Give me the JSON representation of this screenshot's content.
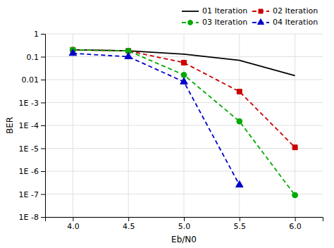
{
  "chart_data": {
    "type": "line",
    "xlabel": "Eb/N0",
    "ylabel": "BER",
    "log": "y",
    "grid": true,
    "legend": "upper right",
    "xlim": [
      3.75,
      6.25
    ],
    "ylim": [
      1e-08,
      1
    ],
    "xticks": [
      {
        "value": 4.0,
        "label": "4.0"
      },
      4.5,
      {
        "value": 5.0,
        "label": "5.0"
      },
      5.5,
      {
        "value": 6.0,
        "label": "6.0"
      }
    ],
    "yticks": [
      {
        "value": 1e-08,
        "label": "1E -8"
      },
      {
        "value": 1e-07,
        "label": "1E -7"
      },
      {
        "value": 1e-06,
        "label": "1E -6"
      },
      {
        "value": 1e-05,
        "label": "1E -5"
      },
      {
        "value": 0.0001,
        "label": "1E -4"
      },
      {
        "value": 0.001,
        "label": "1E -3"
      },
      0.01,
      0.1,
      1
    ],
    "series": [
      {
        "name": "01 Iteration",
        "color": "#000000",
        "line_style": "solid",
        "x": [
          4.0,
          4.5,
          5.0,
          5.5,
          6.0
        ],
        "values": [
          0.2,
          0.18,
          0.13,
          0.07,
          0.015
        ]
      },
      {
        "name": "02 Iteration",
        "color": "#cc0000",
        "line_style": "dashed",
        "marker": "square",
        "x": [
          4.0,
          4.5,
          5.0,
          5.5,
          6.0
        ],
        "values": [
          0.2,
          0.18,
          0.055,
          0.003,
          1.1e-05
        ]
      },
      {
        "name": "03 Iteration",
        "color": "#00aa00",
        "line_style": "dashed",
        "marker": "circle",
        "x": [
          4.0,
          4.5,
          5.0,
          5.5,
          6.0
        ],
        "values": [
          0.2,
          0.18,
          0.016,
          0.00015,
          9e-08
        ]
      },
      {
        "name": "04 Iteration",
        "color": "#0000cc",
        "line_style": "dashed",
        "marker": "triangle",
        "x": [
          4.0,
          4.5,
          5.0,
          5.5
        ],
        "values": [
          0.14,
          0.1,
          0.008,
          2.5e-07
        ]
      }
    ]
  }
}
